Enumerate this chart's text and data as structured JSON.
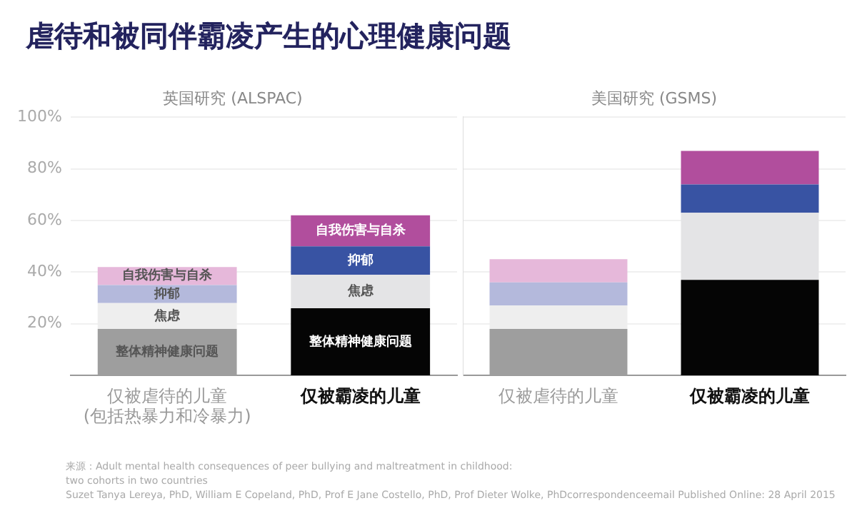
{
  "chart_data": [
    {
      "type": "bar",
      "title": "虐待和被同伴霸凌产生的心理健康问题",
      "subtitle": "英国研究 (ALSPAC)",
      "stacked": true,
      "grid": "y",
      "categories": [
        "仅被虐待的儿童\n(包括热暴力和冷暴力)",
        "仅被霸凌的儿童"
      ],
      "series": [
        {
          "name": "整体精神健康问题",
          "colors": [
            "#9e9e9e",
            "#050505"
          ],
          "values": [
            18,
            26
          ]
        },
        {
          "name": "焦虑",
          "colors": [
            "#eeeeee",
            "#e4e4e6"
          ],
          "values": [
            10,
            13
          ]
        },
        {
          "name": "抑郁",
          "colors": [
            "#b4b9dc",
            "#3853a3"
          ],
          "values": [
            7,
            11
          ]
        },
        {
          "name": "自我伤害与自杀",
          "colors": [
            "#e6b8da",
            "#b14e9d"
          ],
          "values": [
            7,
            12
          ]
        }
      ],
      "ylim": [
        0,
        100
      ],
      "yticks": [
        {
          "value": 20,
          "label": "20%"
        },
        {
          "value": 40,
          "label": "40%"
        },
        {
          "value": 60,
          "label": "60%"
        },
        {
          "value": 80,
          "label": "80%"
        },
        {
          "value": 100,
          "label": "100%"
        }
      ],
      "annotations": [
        "来源：Adult mental health consequences of peer bullying and maltreatment in childhood:\ntwo cohorts in two countries\nSuzet Tanya Lereya, PhD, William E Copeland, PhD, Prof E Jane Costello, PhD, Prof Dieter Wolke, PhDcorrespondenceemail Published Online: 28 April 2015"
      ]
    },
    {
      "type": "bar",
      "subtitle": "美国研究 (GSMS)",
      "stacked": true,
      "grid": "y",
      "tick_labels": "x",
      "categories": [
        "仅被虐待的儿童",
        "仅被霸凌的儿童"
      ],
      "series": [
        {
          "colors": [
            "#9e9e9e",
            "#050505"
          ],
          "values": [
            18,
            37
          ]
        },
        {
          "colors": [
            "#eeeeee",
            "#e4e4e6"
          ],
          "values": [
            9,
            26
          ]
        },
        {
          "colors": [
            "#b4b9dc",
            "#3853a3"
          ],
          "values": [
            9,
            11
          ]
        },
        {
          "colors": [
            "#e6b8da",
            "#b14e9d"
          ],
          "values": [
            9,
            13
          ]
        }
      ],
      "ylim": [
        0,
        100
      ],
      "yticks": [
        {
          "value": 20,
          "label": null
        },
        {
          "value": 40,
          "label": null
        },
        {
          "value": 60,
          "label": null
        },
        {
          "value": 80,
          "label": null
        },
        {
          "value": 100,
          "label": null
        }
      ]
    }
  ]
}
